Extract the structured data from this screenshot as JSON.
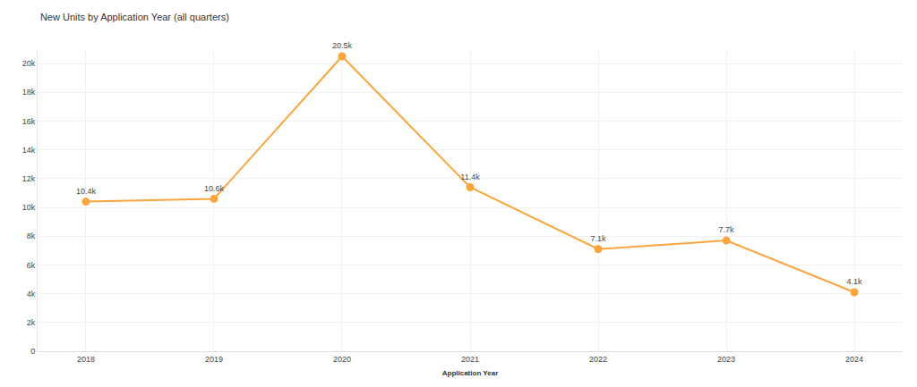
{
  "chart_data": {
    "type": "line",
    "title": "New Units by Application Year (all quarters)",
    "x_label": "Application Year",
    "categories": [
      "2018",
      "2019",
      "2020",
      "2021",
      "2022",
      "2023",
      "2024"
    ],
    "values": [
      10400,
      10600,
      20500,
      11400,
      7100,
      7700,
      4100
    ],
    "value_labels": [
      "10.4k",
      "10.6k",
      "20.5k",
      "11.4k",
      "7.1k",
      "7.7k",
      "4.1k"
    ],
    "data_labels": true,
    "color": "#f9a53c",
    "marker": "circle",
    "line_style": "solid",
    "ylim": [
      0,
      21000
    ],
    "yticks": [
      {
        "value": 0,
        "label": "0"
      },
      {
        "value": 2000,
        "label": "2k"
      },
      {
        "value": 4000,
        "label": "4k"
      },
      {
        "value": 6000,
        "label": "6k"
      },
      {
        "value": 8000,
        "label": "8k"
      },
      {
        "value": 10000,
        "label": "10k"
      },
      {
        "value": 12000,
        "label": "12k"
      },
      {
        "value": 14000,
        "label": "14k"
      },
      {
        "value": 16000,
        "label": "16k"
      },
      {
        "value": 18000,
        "label": "18k"
      },
      {
        "value": 20000,
        "label": "20k"
      }
    ],
    "grid": true
  }
}
